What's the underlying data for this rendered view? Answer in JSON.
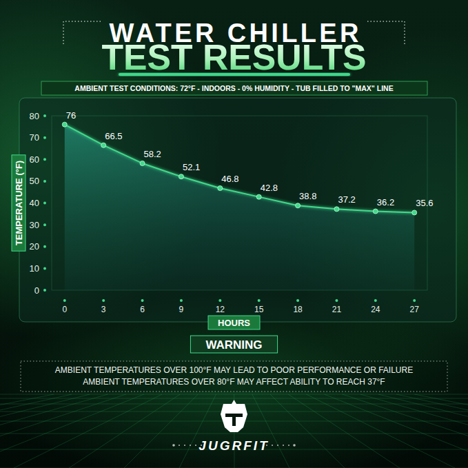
{
  "chart_data": {
    "type": "line",
    "title": "WATER CHILLER",
    "subtitle": "TEST RESULTS",
    "conditions": "AMBIENT TEST CONDITIONS: 72°F - INDOORS - 0% HUMIDITY - TUB FILLED TO \"MAX\" LINE",
    "x_label": "HOURS",
    "y_label": "TEMPERATURE (°F)",
    "x": [
      0,
      3,
      6,
      9,
      12,
      15,
      18,
      21,
      24,
      27
    ],
    "values": [
      76,
      66.5,
      58.2,
      52.1,
      46.8,
      42.8,
      38.8,
      37.2,
      36.2,
      35.6
    ],
    "xlim": [
      -1,
      28
    ],
    "xticks": [
      0,
      3,
      6,
      9,
      12,
      15,
      18,
      21,
      24,
      27
    ],
    "ylim": [
      0,
      80
    ],
    "yticks": [
      0,
      10,
      20,
      30,
      40,
      50,
      60,
      70,
      80
    ],
    "color": "#43d98c",
    "marker": "circle",
    "data_labels": true,
    "grid": false,
    "warning": {
      "heading": "WARNING",
      "lines": [
        "AMBIENT TEMPERATURES OVER 100°F MAY LEAD TO POOR PERFORMANCE OR FAILURE",
        "AMBIENT TEMPERATURES OVER 80°F MAY AFFECT ABILITY TO REACH 37°F"
      ]
    },
    "brand": "JUGRFIT"
  }
}
